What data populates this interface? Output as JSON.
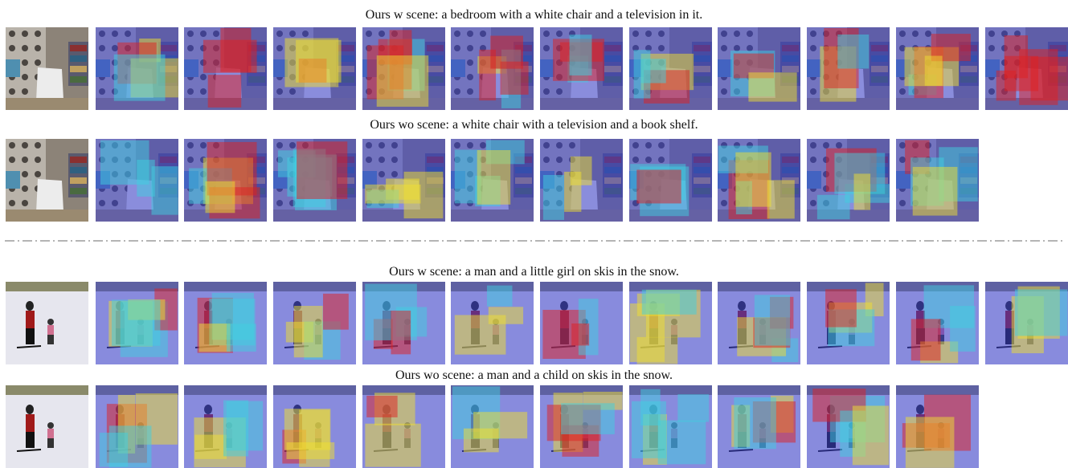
{
  "figure": {
    "groups": [
      {
        "scene": "bedroom",
        "rows": [
          {
            "caption": "Ours w scene: a bedroom with a white chair and a television in it.",
            "panels": [
              "original",
              "map",
              "map",
              "map",
              "map",
              "map",
              "map",
              "map",
              "map",
              "map",
              "map",
              "map"
            ]
          },
          {
            "caption": "Ours wo scene: a white chair with a television and a book shelf.",
            "panels": [
              "original",
              "map",
              "map",
              "map",
              "map",
              "map",
              "map",
              "map",
              "map",
              "map",
              "map"
            ]
          }
        ]
      },
      {
        "scene": "ski",
        "rows": [
          {
            "caption": "Ours w scene: a man and a little girl on skis in the snow.",
            "panels": [
              "original",
              "map",
              "map",
              "map",
              "map",
              "map",
              "map",
              "map",
              "map",
              "map",
              "map",
              "map"
            ]
          },
          {
            "caption": "Ours wo scene: a man and a child on skis in the snow.",
            "panels": [
              "original",
              "map",
              "map",
              "map",
              "map",
              "map",
              "map",
              "map",
              "map",
              "map",
              "map"
            ]
          }
        ]
      }
    ],
    "colors": {
      "cold": "#3b3fd0",
      "cool": "#3fd0e0",
      "warm": "#f0e030",
      "hot": "#e02020",
      "divider": "#888888"
    }
  }
}
